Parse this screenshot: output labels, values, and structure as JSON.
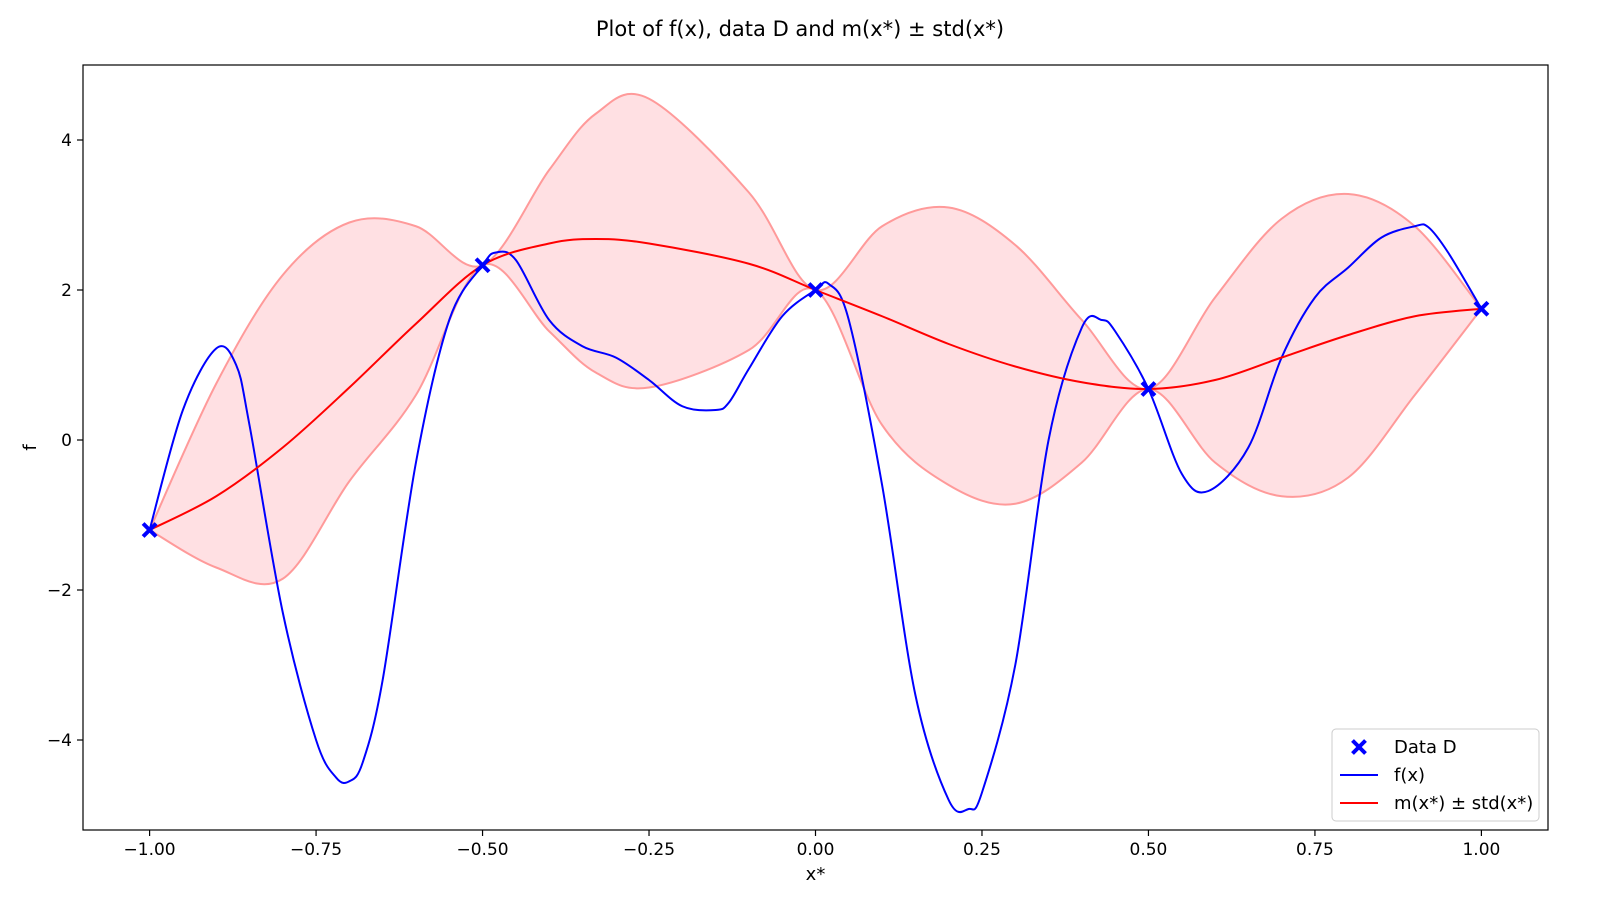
{
  "chart_data": {
    "type": "line",
    "title": "Plot of f(x), data D and m(x*) ± std(x*)",
    "xlabel": "x*",
    "ylabel": "f",
    "xlim": [
      -1.1,
      1.1
    ],
    "ylim": [
      -5.2,
      5.0
    ],
    "xticks": [
      -1.0,
      -0.75,
      -0.5,
      -0.25,
      0.0,
      0.25,
      0.5,
      0.75,
      1.0
    ],
    "xtick_labels": [
      "−1.00",
      "−0.75",
      "−0.50",
      "−0.25",
      "0.00",
      "0.25",
      "0.50",
      "0.75",
      "1.00"
    ],
    "yticks": [
      -4,
      -2,
      0,
      2,
      4
    ],
    "ytick_labels": [
      "−4",
      "−2",
      "0",
      "2",
      "4"
    ],
    "grid": false,
    "legend_position": "bottom-right",
    "legend": [
      {
        "label": "Data D",
        "kind": "marker",
        "color": "#0000ff"
      },
      {
        "label": "f(x)",
        "kind": "line",
        "color": "#0000ff"
      },
      {
        "label": "m(x*) ± std(x*)",
        "kind": "line",
        "color": "#ff0000"
      }
    ],
    "data_points": {
      "name": "Data D",
      "color": "#0000ff",
      "x": [
        -1.0,
        -0.5,
        0.0,
        0.5,
        1.0
      ],
      "y": [
        -1.2,
        2.33,
        2.0,
        0.68,
        1.75
      ]
    },
    "f_series": {
      "name": "f(x)",
      "color": "#0000ff",
      "x": [
        -1.0,
        -0.95,
        -0.9,
        -0.87,
        -0.85,
        -0.8,
        -0.75,
        -0.72,
        -0.7,
        -0.68,
        -0.65,
        -0.6,
        -0.55,
        -0.5,
        -0.48,
        -0.45,
        -0.4,
        -0.35,
        -0.3,
        -0.25,
        -0.2,
        -0.15,
        -0.13,
        -0.1,
        -0.05,
        0.0,
        0.02,
        0.05,
        0.1,
        0.15,
        0.2,
        0.23,
        0.25,
        0.3,
        0.35,
        0.4,
        0.43,
        0.45,
        0.5,
        0.55,
        0.59,
        0.65,
        0.7,
        0.75,
        0.8,
        0.85,
        0.9,
        0.92,
        0.95,
        1.0
      ],
      "y": [
        -1.2,
        0.4,
        1.22,
        1.0,
        0.2,
        -2.3,
        -4.0,
        -4.5,
        -4.55,
        -4.3,
        -3.2,
        -0.3,
        1.6,
        2.33,
        2.5,
        2.4,
        1.6,
        1.25,
        1.1,
        0.8,
        0.45,
        0.4,
        0.5,
        0.95,
        1.65,
        2.0,
        2.08,
        1.6,
        -0.6,
        -3.4,
        -4.8,
        -4.92,
        -4.7,
        -3.0,
        0.0,
        1.5,
        1.6,
        1.45,
        0.68,
        -0.45,
        -0.68,
        -0.1,
        1.1,
        1.9,
        2.3,
        2.7,
        2.85,
        2.84,
        2.5,
        1.75
      ]
    },
    "mean_series": {
      "name": "m(x*) ± std(x*)",
      "color": "#ff0000",
      "band_color": "#ffe0e3",
      "band_edge_color": "#ff9a9a",
      "x": [
        -1.0,
        -0.9,
        -0.8,
        -0.7,
        -0.6,
        -0.5,
        -0.4,
        -0.33,
        -0.25,
        -0.1,
        0.0,
        0.1,
        0.2,
        0.3,
        0.4,
        0.5,
        0.6,
        0.7,
        0.8,
        0.9,
        1.0
      ],
      "y": [
        -1.2,
        -0.75,
        -0.1,
        0.7,
        1.55,
        2.33,
        2.62,
        2.68,
        2.62,
        2.35,
        2.0,
        1.65,
        1.28,
        0.98,
        0.77,
        0.68,
        0.8,
        1.1,
        1.4,
        1.65,
        1.75
      ],
      "upper": [
        -1.2,
        0.75,
        2.2,
        2.9,
        2.85,
        2.33,
        3.6,
        4.35,
        4.55,
        3.3,
        2.0,
        2.85,
        3.1,
        2.6,
        1.6,
        0.68,
        1.9,
        2.95,
        3.28,
        2.85,
        1.75
      ],
      "lower": [
        -1.2,
        -1.7,
        -1.85,
        -0.55,
        0.6,
        2.33,
        1.45,
        0.9,
        0.7,
        1.2,
        2.0,
        0.2,
        -0.6,
        -0.85,
        -0.3,
        0.68,
        -0.3,
        -0.75,
        -0.5,
        0.6,
        1.75
      ]
    }
  }
}
